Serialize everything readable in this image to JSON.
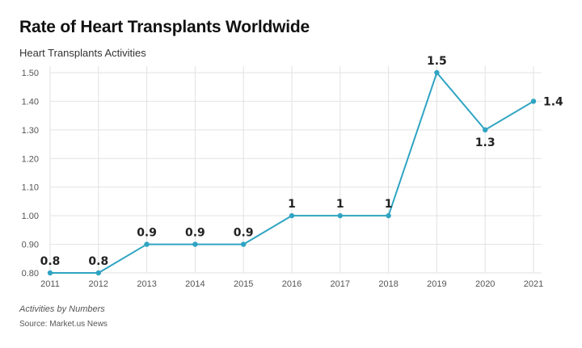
{
  "chart_data": {
    "type": "line",
    "title": "Rate of Heart Transplants Worldwide",
    "subtitle": "Heart Transplants Activities",
    "categories": [
      "2011",
      "2012",
      "2013",
      "2014",
      "2015",
      "2016",
      "2017",
      "2018",
      "2019",
      "2020",
      "2021"
    ],
    "series": [
      {
        "values": [
          0.8,
          0.8,
          0.9,
          0.9,
          0.9,
          1.0,
          1.0,
          1.0,
          1.5,
          1.3,
          1.4
        ],
        "labels": [
          "0.8",
          "0.8",
          "0.9",
          "0.9",
          "0.9",
          "1",
          "1",
          "1",
          "1.5",
          "1.3",
          "1.4"
        ]
      }
    ],
    "yticks": [
      "0.80",
      "0.90",
      "1.00",
      "1.10",
      "1.20",
      "1.30",
      "1.40",
      "1.50"
    ],
    "ylim": [
      0.8,
      1.5
    ],
    "grid": true,
    "line_color": "#2fa4c2",
    "footnote": "Activities by Numbers",
    "source": "Source: Market.us News"
  }
}
